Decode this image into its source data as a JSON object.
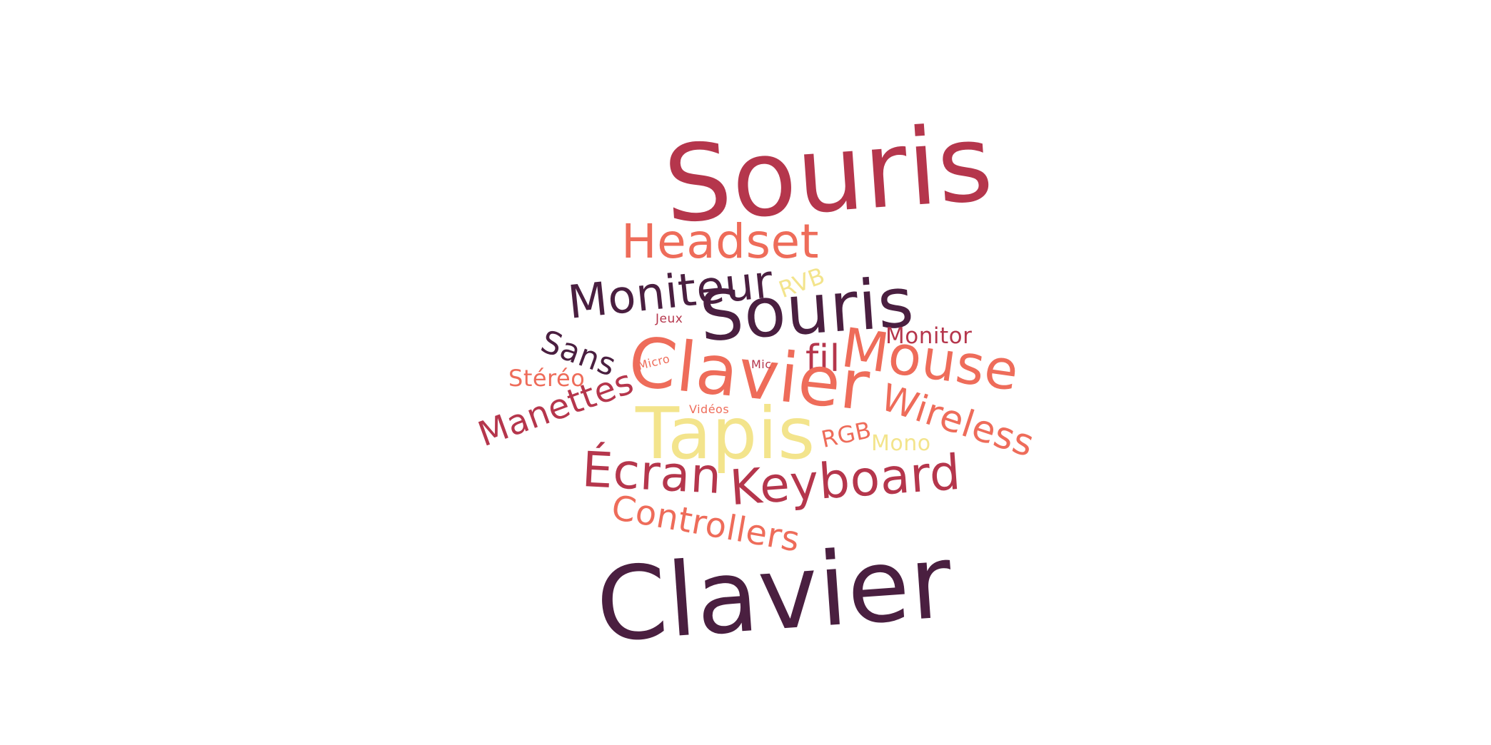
{
  "colors": {
    "dark_purple": "#4a1f40",
    "crimson": "#b5364c",
    "salmon": "#ee6c5a",
    "yellow": "#f3e48c"
  },
  "words": {
    "souris_large": {
      "text": "Souris",
      "color": "#b5364c"
    },
    "headset": {
      "text": "Headset",
      "color": "#ee6c5a"
    },
    "moniteur": {
      "text": "Moniteur",
      "color": "#4a1f40"
    },
    "rvb": {
      "text": "RVB",
      "color": "#f3e48c"
    },
    "souris_mid": {
      "text": "Souris",
      "color": "#4a1f40"
    },
    "jeux": {
      "text": "Jeux",
      "color": "#b5364c"
    },
    "monitor": {
      "text": "Monitor",
      "color": "#b5364c"
    },
    "sans": {
      "text": "Sans",
      "color": "#4a1f40"
    },
    "fil": {
      "text": "fil",
      "color": "#b5364c"
    },
    "mouse": {
      "text": "Mouse",
      "color": "#ee6c5a"
    },
    "micro": {
      "text": "Micro",
      "color": "#ee6c5a"
    },
    "clavier_mid": {
      "text": "Clavier",
      "color": "#ee6c5a"
    },
    "mic": {
      "text": "Mic",
      "color": "#b5364c"
    },
    "stereo": {
      "text": "Stéréo",
      "color": "#ee6c5a"
    },
    "manettes": {
      "text": "Manettes",
      "color": "#b5364c"
    },
    "wireless": {
      "text": "Wireless",
      "color": "#ee6c5a"
    },
    "videos": {
      "text": "Vidéos",
      "color": "#ee6c5a"
    },
    "tapis": {
      "text": "Tapis",
      "color": "#f3e48c"
    },
    "rgb": {
      "text": "RGB",
      "color": "#ee6c5a"
    },
    "mono": {
      "text": "Mono",
      "color": "#f3e48c"
    },
    "ecran": {
      "text": "Écran",
      "color": "#b5364c"
    },
    "keyboard": {
      "text": "Keyboard",
      "color": "#b5364c"
    },
    "controllers": {
      "text": "Controllers",
      "color": "#ee6c5a"
    },
    "clavier_big": {
      "text": "Clavier",
      "color": "#4a1f40"
    }
  }
}
